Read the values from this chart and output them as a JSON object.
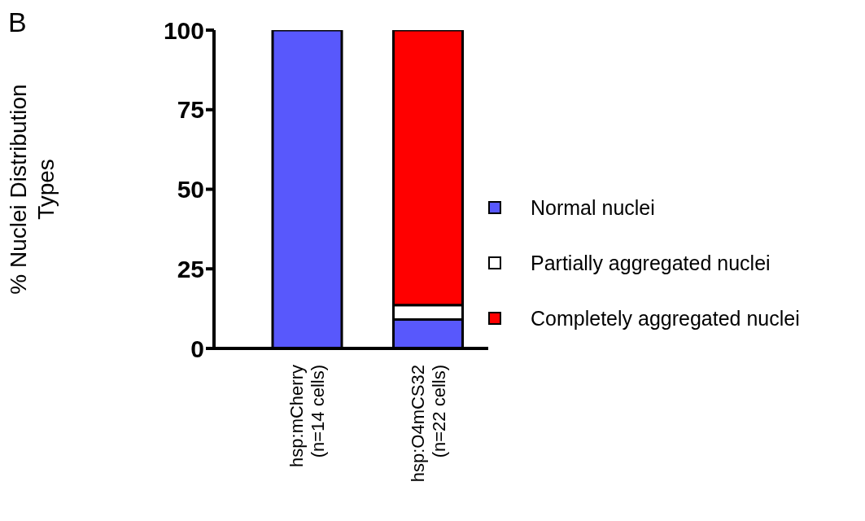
{
  "chart_data": {
    "type": "bar",
    "stacked": true,
    "ylabel": "% Nuclei Distribution\nTypes",
    "annotations": [
      "B"
    ],
    "categories": [
      "hsp:mCherry\n(n=14 cells)",
      "hsp:O4mCS32\n(n=22 cells)"
    ],
    "series": [
      {
        "name": "Normal nuclei",
        "color": "#5858fc",
        "values": [
          100,
          9.1
        ]
      },
      {
        "name": "Partially aggregated nuclei",
        "color": "#ffffff",
        "values": [
          null,
          4.5
        ]
      },
      {
        "name": "Completely aggregated nuclei",
        "color": "#ff0000",
        "values": [
          null,
          86.4
        ]
      }
    ],
    "ylim": [
      0,
      100
    ],
    "yticks": [
      0,
      25,
      50,
      75,
      100
    ],
    "legend": "right"
  }
}
